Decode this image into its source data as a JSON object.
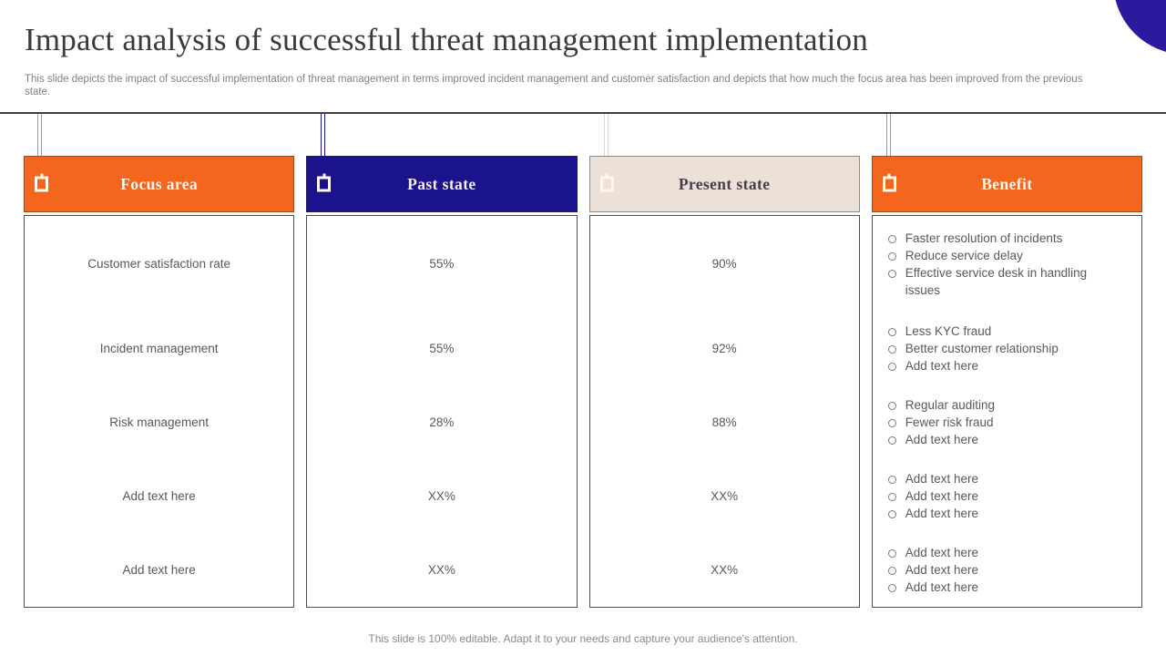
{
  "slide": {
    "title": "Impact analysis of successful threat management implementation",
    "subtitle": "This slide depicts the impact of successful implementation of threat management in terms improved incident management and customer satisfaction and depicts that how much the focus area has been improved from the previous state.",
    "footer_note": "This slide is 100% editable. Adapt it to your needs and capture your audience's attention."
  },
  "colors": {
    "accent_orange": "#F4661D",
    "accent_navy": "#1B138C",
    "accent_beige": "#EDE0D9",
    "corner_circle_navy": "#2A1A9E",
    "header_light_text": "#FCF6EC",
    "header_dark_text": "#44404A",
    "body_text_gray": "#595959",
    "muted_text_gray": "#808080",
    "rule_gray": "#3F3F3F"
  },
  "icons": {
    "header_anchor": "square-anchor-icon",
    "list_bullet": "hollow-circle-bullet"
  },
  "table": {
    "columns": [
      {
        "header": "Focus area",
        "theme": "orange",
        "rows": [
          "Customer satisfaction rate",
          "Incident management",
          "Risk management",
          "Add text here",
          "Add text here"
        ]
      },
      {
        "header": "Past state",
        "theme": "navy",
        "rows": [
          "55%",
          "55%",
          "28%",
          "XX%",
          "XX%"
        ]
      },
      {
        "header": "Present state",
        "theme": "beige",
        "rows": [
          "90%",
          "92%",
          "88%",
          "XX%",
          "XX%"
        ]
      },
      {
        "header": "Benefit",
        "theme": "orange",
        "rows": [
          [
            "Faster resolution of incidents",
            "Reduce service delay",
            "Effective service desk in handling issues"
          ],
          [
            "Less KYC fraud",
            "Better customer relationship",
            "Add text here"
          ],
          [
            "Regular auditing",
            "Fewer risk fraud",
            "Add text here"
          ],
          [
            "Add text here",
            "Add text here",
            "Add text here"
          ],
          [
            "Add text here",
            "Add text here",
            "Add text here"
          ]
        ]
      }
    ]
  }
}
